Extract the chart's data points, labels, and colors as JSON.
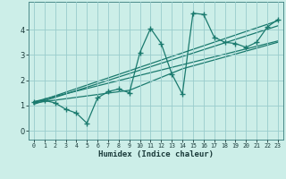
{
  "xlabel": "Humidex (Indice chaleur)",
  "bg_color": "#cceee8",
  "line_color": "#1a7a6e",
  "grid_color": "#99cccc",
  "xlim": [
    -0.5,
    23.5
  ],
  "ylim": [
    -0.35,
    5.1
  ],
  "xticks": [
    0,
    1,
    2,
    3,
    4,
    5,
    6,
    7,
    8,
    9,
    10,
    11,
    12,
    13,
    14,
    15,
    16,
    17,
    18,
    19,
    20,
    21,
    22,
    23
  ],
  "yticks": [
    0,
    1,
    2,
    3,
    4
  ],
  "main_x": [
    0,
    1,
    2,
    3,
    4,
    5,
    6,
    7,
    8,
    9,
    10,
    11,
    12,
    13,
    14,
    15,
    16,
    17,
    18,
    19,
    20,
    21,
    22,
    23
  ],
  "main_y": [
    1.15,
    1.2,
    1.1,
    0.85,
    0.7,
    0.3,
    1.3,
    1.55,
    1.65,
    1.5,
    3.1,
    4.05,
    3.45,
    2.25,
    1.45,
    4.65,
    4.6,
    3.7,
    3.5,
    3.45,
    3.3,
    3.5,
    4.1,
    4.4
  ],
  "line2_x": [
    0,
    23
  ],
  "line2_y": [
    1.1,
    4.35
  ],
  "line3_x": [
    0,
    23
  ],
  "line3_y": [
    1.15,
    3.55
  ],
  "line4_x": [
    0,
    23
  ],
  "line4_y": [
    1.05,
    4.15
  ],
  "line5_x": [
    0,
    9,
    14,
    23
  ],
  "line5_y": [
    1.1,
    1.6,
    2.45,
    3.5
  ]
}
